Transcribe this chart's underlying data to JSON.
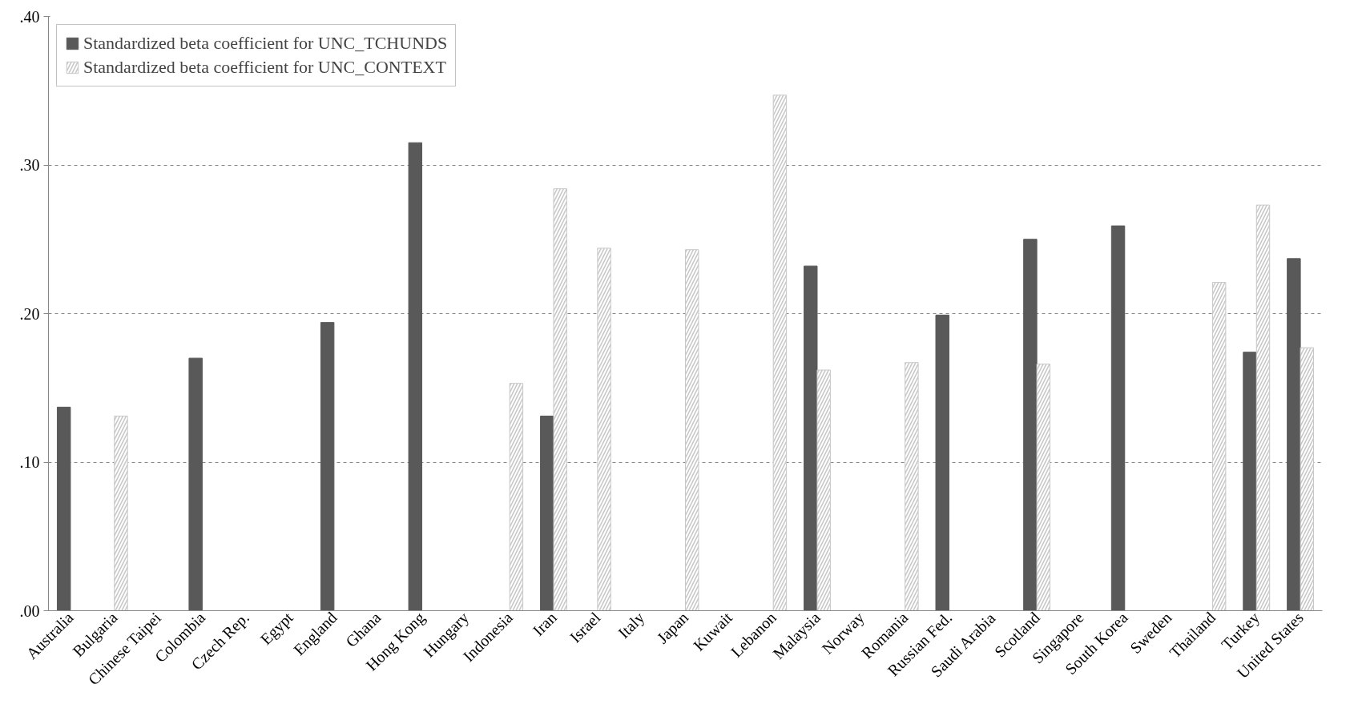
{
  "chart_data": {
    "type": "bar",
    "categories": [
      "Australia",
      "Bulgaria",
      "Chinese Taipei",
      "Colombia",
      "Czech Rep.",
      "Egypt",
      "England",
      "Ghana",
      "Hong Kong",
      "Hungary",
      "Indonesia",
      "Iran",
      "Israel",
      "Italy",
      "Japan",
      "Kuwait",
      "Lebanon",
      "Malaysia",
      "Norway",
      "Romania",
      "Russian Fed.",
      "Saudi Arabia",
      "Scotland",
      "Singapore",
      "South Korea",
      "Sweden",
      "Thailand",
      "Turkey",
      "United States"
    ],
    "series": [
      {
        "name": "Standardized beta coefficient for UNC_TCHUNDS",
        "color": "#595959",
        "values": [
          0.137,
          null,
          null,
          0.17,
          null,
          null,
          0.194,
          null,
          0.315,
          null,
          null,
          0.131,
          null,
          null,
          null,
          null,
          null,
          0.232,
          null,
          null,
          0.199,
          null,
          0.25,
          null,
          0.259,
          null,
          null,
          0.174,
          0.237
        ]
      },
      {
        "name": "Standardized beta coefficient for UNC_CONTEXT",
        "color": "#c8c8c8",
        "values": [
          null,
          0.131,
          null,
          null,
          null,
          null,
          null,
          null,
          null,
          null,
          0.153,
          0.284,
          0.244,
          null,
          0.243,
          null,
          0.347,
          0.162,
          null,
          0.167,
          null,
          null,
          0.166,
          null,
          null,
          null,
          0.221,
          0.273,
          0.177
        ]
      }
    ],
    "ylim": [
      0,
      0.4
    ],
    "yticks": [
      {
        "value": 0,
        "label": ".00"
      },
      {
        "value": 0.1,
        "label": ".10"
      },
      {
        "value": 0.2,
        "label": ".20"
      },
      {
        "value": 0.3,
        "label": ".30"
      },
      {
        "value": 0.4,
        "label": ".40"
      }
    ],
    "grid": "y",
    "legend": "top left"
  }
}
